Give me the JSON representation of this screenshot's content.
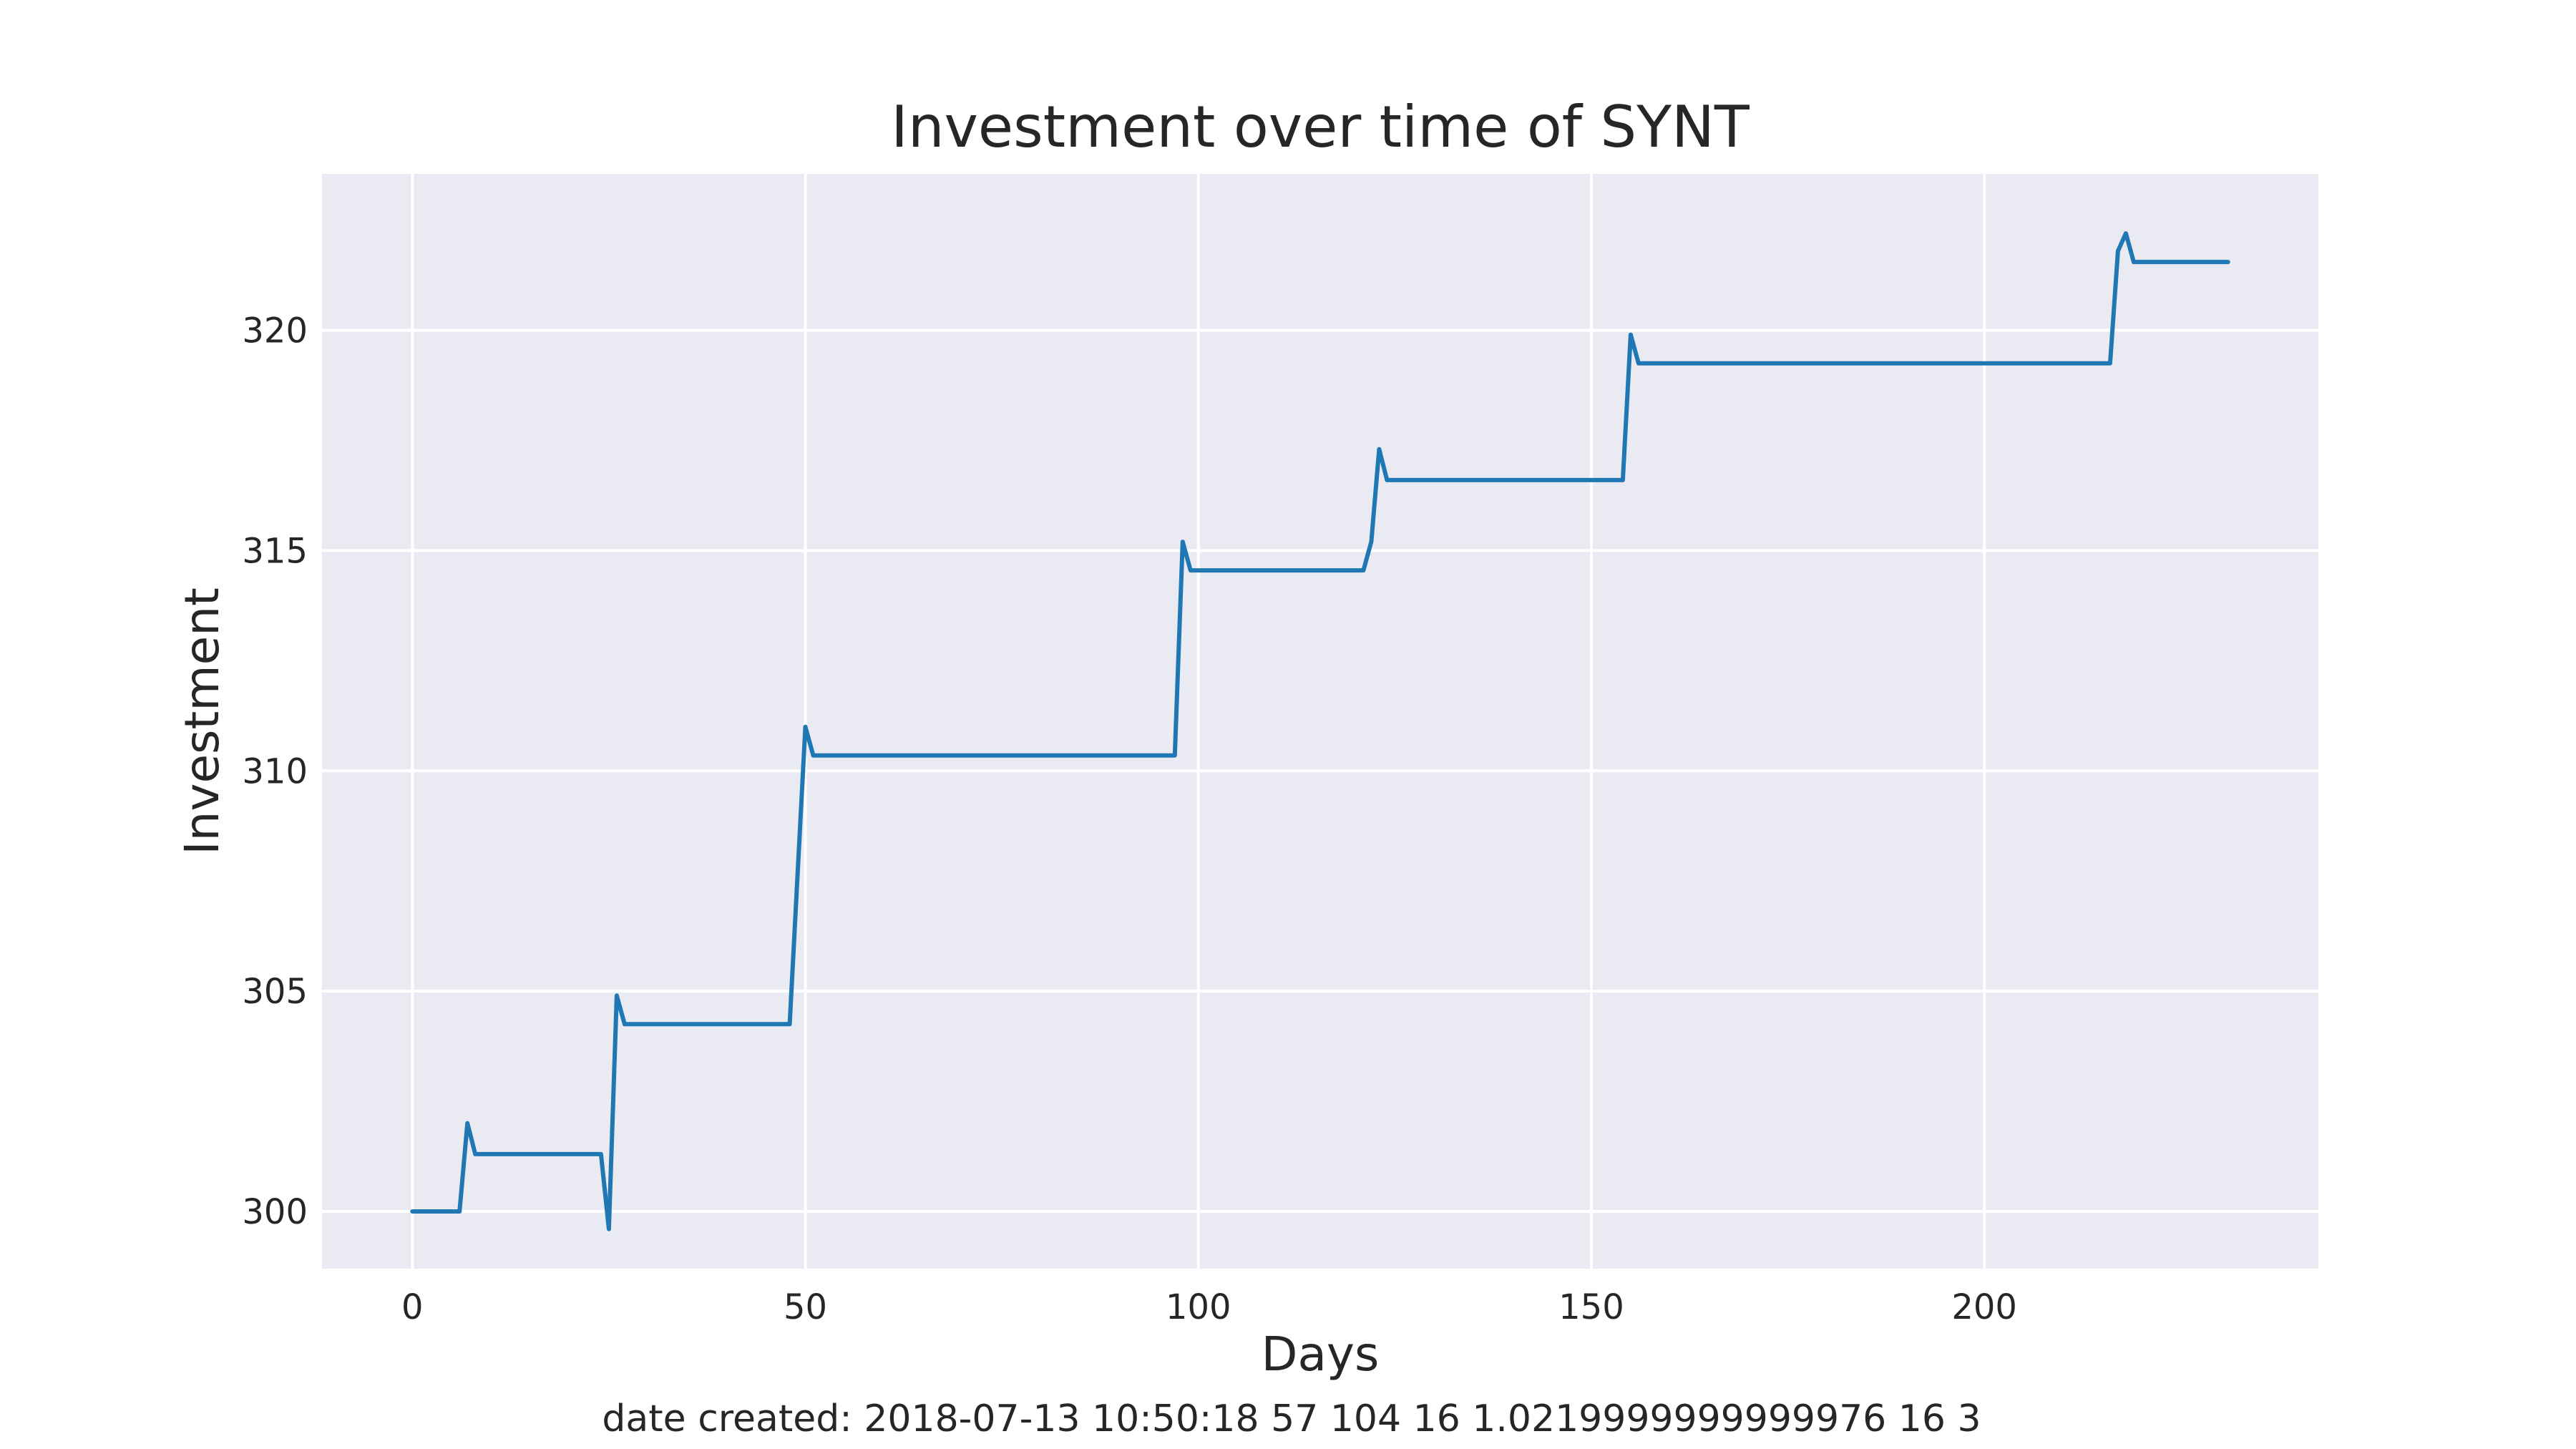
{
  "chart_data": {
    "type": "line",
    "title": "Investment over time of SYNT",
    "xlabel": "Days",
    "ylabel": "Investment",
    "xlim": [
      -11.5,
      242.5
    ],
    "ylim": [
      298.7,
      323.55
    ],
    "xticks": [
      0,
      50,
      100,
      150,
      200
    ],
    "yticks": [
      300,
      305,
      310,
      315,
      320
    ],
    "grid": true,
    "legend": "none",
    "series": [
      {
        "color": "#1f77b4",
        "points": [
          [
            0,
            300.0
          ],
          [
            6,
            300.0
          ],
          [
            7,
            302.0
          ],
          [
            8,
            301.3
          ],
          [
            24,
            301.3
          ],
          [
            25,
            299.6
          ],
          [
            26,
            304.9
          ],
          [
            27,
            304.25
          ],
          [
            48,
            304.25
          ],
          [
            50,
            311.0
          ],
          [
            51,
            310.35
          ],
          [
            97,
            310.35
          ],
          [
            98,
            315.2
          ],
          [
            99,
            314.55
          ],
          [
            121,
            314.55
          ],
          [
            122,
            315.2
          ],
          [
            123,
            317.3
          ],
          [
            124,
            316.6
          ],
          [
            154,
            316.6
          ],
          [
            155,
            319.9
          ],
          [
            156,
            319.25
          ],
          [
            216,
            319.25
          ],
          [
            217,
            321.8
          ],
          [
            218,
            322.2
          ],
          [
            219,
            321.55
          ],
          [
            231,
            321.55
          ]
        ]
      }
    ]
  },
  "footer": {
    "text": "date created: 2018-07-13 10:50:18 57 104 16 1.0219999999999976 16 3"
  }
}
